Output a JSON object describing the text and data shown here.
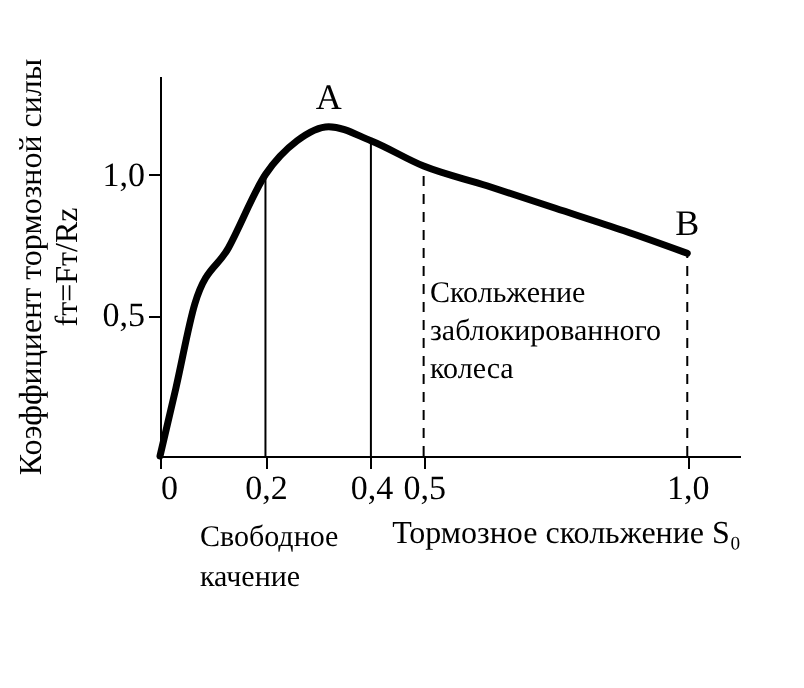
{
  "chart_data": {
    "type": "line",
    "xlabel": "Тормозное скольжение S₀",
    "ylabel": "Коэффициент тормозной силы  fт=Fт/Rz",
    "x": [
      0,
      0.03,
      0.066,
      0.13,
      0.2,
      0.26,
      0.32,
      0.4,
      0.5,
      0.62,
      0.75,
      0.88,
      1.0
    ],
    "series": [
      {
        "color": "#000000",
        "values": [
          0,
          0.24,
          0.54,
          0.74,
          1.0,
          1.12,
          1.17,
          1.12,
          1.03,
          0.96,
          0.88,
          0.8,
          0.72
        ]
      }
    ],
    "xlim": [
      0,
      1.1
    ],
    "ylim": [
      0,
      1.35
    ],
    "xticks": [
      0,
      {
        "value": 0.2,
        "label": "0,2"
      },
      {
        "value": 0.4,
        "label": "0,4"
      },
      {
        "value": 0.5,
        "label": "0,5"
      },
      {
        "value": 1.0,
        "label": "1,0"
      }
    ],
    "yticks": [
      {
        "value": 0.5,
        "label": "0,5"
      },
      {
        "value": 1.0,
        "label": "1,0"
      }
    ],
    "ref_lines": [
      {
        "axis": "x",
        "value": 0.2
      },
      {
        "axis": "x",
        "value": 0.4
      },
      {
        "axis": "x",
        "value": 0.5,
        "line_style": "dashed"
      },
      {
        "axis": "x",
        "value": 1.0,
        "line_style": "dashed"
      }
    ],
    "annotations": [
      {
        "text": "A",
        "x": 0.32,
        "y": 1.17
      },
      {
        "text": "B",
        "x": 1.0,
        "y": 0.72
      },
      "Свободное качение",
      "Скольжение заблокированного колеса"
    ],
    "grid": false,
    "marker": "none",
    "line_style": "solid"
  }
}
